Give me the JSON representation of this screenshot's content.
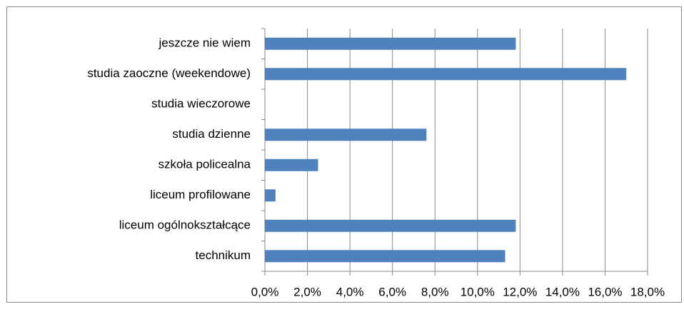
{
  "chart_data": {
    "type": "barh",
    "categories": [
      "jeszcze nie wiem",
      "studia zaoczne (weekendowe)",
      "studia wieczorowe",
      "studia dzienne",
      "szkoła policealna",
      "liceum profilowane",
      "liceum ogólnokształcące",
      "technikum"
    ],
    "values": [
      11.8,
      17.0,
      0,
      7.6,
      2.5,
      0.5,
      11.8,
      11.3
    ],
    "color": "#4f81bd",
    "xlim": [
      0,
      18
    ],
    "xticks": [
      {
        "value": 0,
        "label": "0,0%"
      },
      {
        "value": 2,
        "label": "2,0%"
      },
      {
        "value": 4,
        "label": "4,0%"
      },
      {
        "value": 6,
        "label": "6,0%"
      },
      {
        "value": 8,
        "label": "8,0%"
      },
      {
        "value": 10,
        "label": "10,0%"
      },
      {
        "value": 12,
        "label": "12,0%"
      },
      {
        "value": 14,
        "label": "14,0%"
      },
      {
        "value": 16,
        "label": "16,0%"
      },
      {
        "value": 18,
        "label": "18,0%"
      }
    ],
    "grid": true
  }
}
